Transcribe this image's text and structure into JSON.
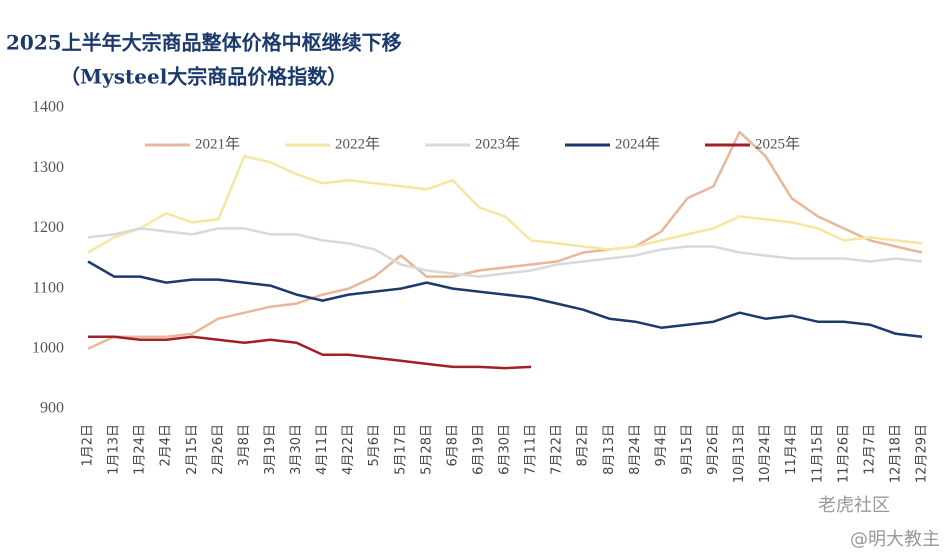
{
  "chart_data": {
    "type": "line",
    "title": "2025上半年大宗商品整体价格中枢继续下移",
    "subtitle": "（Mysteel大宗商品价格指数）",
    "categories": [
      "1月2日",
      "1月13日",
      "1月24日",
      "2月4日",
      "2月15日",
      "2月26日",
      "3月8日",
      "3月19日",
      "3月30日",
      "4月11日",
      "4月22日",
      "5月6日",
      "5月17日",
      "5月28日",
      "6月8日",
      "6月19日",
      "6月30日",
      "7月11日",
      "7月22日",
      "8月2日",
      "8月13日",
      "8月24日",
      "9月4日",
      "9月15日",
      "9月26日",
      "10月13日",
      "10月24日",
      "11月4日",
      "11月15日",
      "11月26日",
      "12月7日",
      "12月18日",
      "12月29日"
    ],
    "series": [
      {
        "name": "2021年",
        "color": "#e8b79b",
        "values": [
          1000,
          1020,
          1020,
          1020,
          1025,
          1050,
          1060,
          1070,
          1075,
          1090,
          1100,
          1120,
          1155,
          1120,
          1120,
          1130,
          1135,
          1140,
          1145,
          1160,
          1165,
          1170,
          1195,
          1250,
          1270,
          1360,
          1320,
          1250,
          1220,
          1200,
          1180,
          1170,
          1160
        ]
      },
      {
        "name": "2022年",
        "color": "#f5e6a0",
        "values": [
          1160,
          1185,
          1200,
          1225,
          1210,
          1215,
          1320,
          1310,
          1290,
          1275,
          1280,
          1275,
          1270,
          1265,
          1280,
          1235,
          1220,
          1180,
          1175,
          1170,
          1165,
          1170,
          1180,
          1190,
          1200,
          1220,
          1215,
          1210,
          1200,
          1180,
          1185,
          1180,
          1175
        ]
      },
      {
        "name": "2023年",
        "color": "#d9d9d9",
        "values": [
          1185,
          1190,
          1200,
          1195,
          1190,
          1200,
          1200,
          1190,
          1190,
          1180,
          1175,
          1165,
          1140,
          1130,
          1125,
          1120,
          1125,
          1130,
          1140,
          1145,
          1150,
          1155,
          1165,
          1170,
          1170,
          1160,
          1155,
          1150,
          1150,
          1150,
          1145,
          1150,
          1145
        ]
      },
      {
        "name": "2024年",
        "color": "#1b3a6b",
        "values": [
          1145,
          1120,
          1120,
          1110,
          1115,
          1115,
          1110,
          1105,
          1090,
          1080,
          1090,
          1095,
          1100,
          1110,
          1100,
          1095,
          1090,
          1085,
          1075,
          1065,
          1050,
          1045,
          1035,
          1040,
          1045,
          1060,
          1050,
          1055,
          1045,
          1045,
          1040,
          1025,
          1020
        ]
      },
      {
        "name": "2025年",
        "color": "#a31f24",
        "values": [
          1020,
          1020,
          1015,
          1015,
          1020,
          1015,
          1010,
          1015,
          1010,
          990,
          990,
          985,
          980,
          975,
          970,
          970,
          968,
          970,
          null,
          null,
          null,
          null,
          null,
          null,
          null,
          null,
          null,
          null,
          null,
          null,
          null,
          null,
          null
        ]
      }
    ],
    "ylim": [
      900,
      1400
    ],
    "yticks": [
      900,
      1000,
      1100,
      1200,
      1300,
      1400
    ],
    "grid": false,
    "legend": "top",
    "annotations": [
      "老虎社区",
      "@明大教主"
    ]
  }
}
